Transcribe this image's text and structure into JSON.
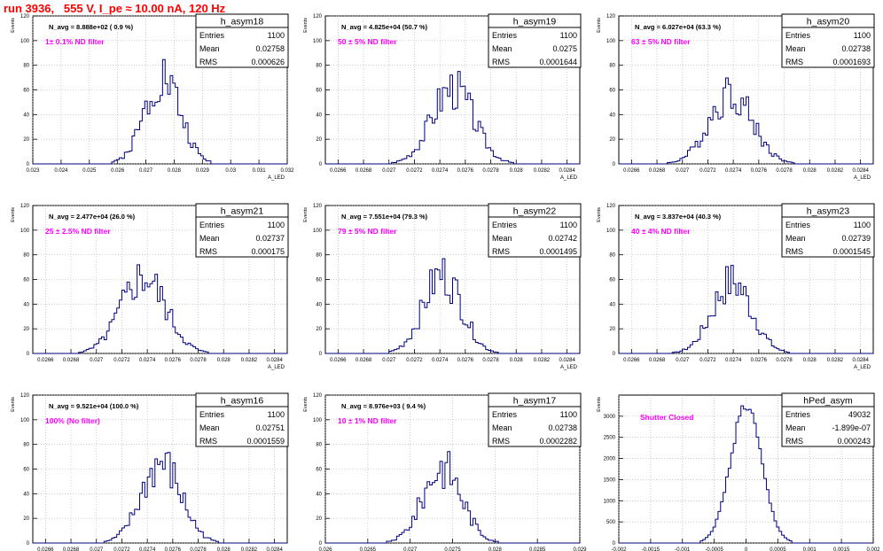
{
  "page_title": "run 3936,   555 V, I_pe ≈ 10.00 nA, 120 Hz",
  "colors": {
    "background": "#ffffff",
    "axis": "#000000",
    "grid": "#b0b0b0",
    "hist": "#000080",
    "title_red": "#ff0000",
    "annotation": "#ff00ff"
  },
  "chart_data": [
    {
      "type": "bar",
      "name": "h_asym18",
      "ylabel": "Events",
      "xlabel": "A_LED",
      "xlim": [
        0.023,
        0.032
      ],
      "ylim": [
        0,
        120
      ],
      "xticks": [
        "0.023",
        "0.024",
        "0.025",
        "0.026",
        "0.027",
        "0.028",
        "0.029",
        "0.03",
        "0.031",
        "0.032"
      ],
      "yticks": [
        "0",
        "20",
        "40",
        "60",
        "80",
        "100",
        "120"
      ],
      "navg": "N_avg = 8.888e+02 ( 0.9 %)",
      "filter": "1± 0.1% ND filter",
      "stats": [
        {
          "label": "Entries",
          "value": "1100"
        },
        {
          "label": "Mean",
          "value": "0.02758"
        },
        {
          "label": "RMS",
          "value": "0.000626"
        }
      ],
      "mean": 0.02758,
      "sigma": 0.000626,
      "peak": 72,
      "seed": 1
    },
    {
      "type": "bar",
      "name": "h_asym19",
      "ylabel": "Events",
      "xlabel": "A_LED",
      "xlim": [
        0.0265,
        0.0285
      ],
      "ylim": [
        0,
        120
      ],
      "xticks": [
        "0.0266",
        "0.0268",
        "0.027",
        "0.0272",
        "0.0274",
        "0.0276",
        "0.0278",
        "0.028",
        "0.0282",
        "0.0284"
      ],
      "yticks": [
        "0",
        "20",
        "40",
        "60",
        "80",
        "100",
        "120"
      ],
      "navg": "N_avg = 4.825e+04 (50.7 %)",
      "filter": "50 ± 5% ND filter",
      "stats": [
        {
          "label": "Entries",
          "value": "1100"
        },
        {
          "label": "Mean",
          "value": "0.0275"
        },
        {
          "label": "RMS",
          "value": "0.0001644"
        }
      ],
      "mean": 0.0275,
      "sigma": 0.0001644,
      "peak": 62,
      "seed": 2
    },
    {
      "type": "bar",
      "name": "h_asym20",
      "ylabel": "Events",
      "xlabel": "A_LED",
      "xlim": [
        0.0265,
        0.0285
      ],
      "ylim": [
        0,
        120
      ],
      "xticks": [
        "0.0266",
        "0.0268",
        "0.027",
        "0.0272",
        "0.0274",
        "0.0276",
        "0.0278",
        "0.028",
        "0.0282",
        "0.0284"
      ],
      "yticks": [
        "0",
        "20",
        "40",
        "60",
        "80",
        "100",
        "120"
      ],
      "navg": "N_avg = 6.027e+04 (63.3 %)",
      "filter": "63 ± 5% ND filter",
      "stats": [
        {
          "label": "Entries",
          "value": "1100"
        },
        {
          "label": "Mean",
          "value": "0.02738"
        },
        {
          "label": "RMS",
          "value": "0.0001693"
        }
      ],
      "mean": 0.02738,
      "sigma": 0.0001693,
      "peak": 58,
      "seed": 3
    },
    {
      "type": "bar",
      "name": "h_asym21",
      "ylabel": "Events",
      "xlabel": "A_LED",
      "xlim": [
        0.0265,
        0.0285
      ],
      "ylim": [
        0,
        120
      ],
      "xticks": [
        "0.0266",
        "0.0268",
        "0.027",
        "0.0272",
        "0.0274",
        "0.0276",
        "0.0278",
        "0.028",
        "0.0282",
        "0.0284"
      ],
      "yticks": [
        "0",
        "20",
        "40",
        "60",
        "80",
        "100",
        "120"
      ],
      "navg": "N_avg = 2.477e+04 (26.0 %)",
      "filter": "25 ± 2.5% ND filter",
      "stats": [
        {
          "label": "Entries",
          "value": "1100"
        },
        {
          "label": "Mean",
          "value": "0.02737"
        },
        {
          "label": "RMS",
          "value": "0.000175"
        }
      ],
      "mean": 0.02737,
      "sigma": 0.000175,
      "peak": 62,
      "seed": 4
    },
    {
      "type": "bar",
      "name": "h_asym22",
      "ylabel": "Events",
      "xlabel": "A_LED",
      "xlim": [
        0.0265,
        0.0285
      ],
      "ylim": [
        0,
        120
      ],
      "xticks": [
        "0.0266",
        "0.0268",
        "0.027",
        "0.0272",
        "0.0274",
        "0.0276",
        "0.0278",
        "0.028",
        "0.0282",
        "0.0284"
      ],
      "yticks": [
        "0",
        "20",
        "40",
        "60",
        "80",
        "100",
        "120"
      ],
      "navg": "N_avg = 7.551e+04 (79.3 %)",
      "filter": "79 ± 5% ND filter",
      "stats": [
        {
          "label": "Entries",
          "value": "1100"
        },
        {
          "label": "Mean",
          "value": "0.02742"
        },
        {
          "label": "RMS",
          "value": "0.0001495"
        }
      ],
      "mean": 0.02742,
      "sigma": 0.0001495,
      "peak": 64,
      "seed": 5
    },
    {
      "type": "bar",
      "name": "h_asym23",
      "ylabel": "Events",
      "xlabel": "A_LED",
      "xlim": [
        0.0265,
        0.0285
      ],
      "ylim": [
        0,
        120
      ],
      "xticks": [
        "0.0266",
        "0.0268",
        "0.027",
        "0.0272",
        "0.0274",
        "0.0276",
        "0.0278",
        "0.028",
        "0.0282",
        "0.0284"
      ],
      "yticks": [
        "0",
        "20",
        "40",
        "60",
        "80",
        "100",
        "120"
      ],
      "navg": "N_avg = 3.837e+04 (40.3 %)",
      "filter": "40 ± 4% ND filter",
      "stats": [
        {
          "label": "Entries",
          "value": "1100"
        },
        {
          "label": "Mean",
          "value": "0.02739"
        },
        {
          "label": "RMS",
          "value": "0.0001545"
        }
      ],
      "mean": 0.02739,
      "sigma": 0.0001545,
      "peak": 58,
      "seed": 6
    },
    {
      "type": "bar",
      "name": "h_asym16",
      "ylabel": "Events",
      "xlabel": "A_LED",
      "xlim": [
        0.0265,
        0.0285
      ],
      "ylim": [
        0,
        120
      ],
      "xticks": [
        "0.0266",
        "0.0268",
        "0.027",
        "0.0272",
        "0.0274",
        "0.0276",
        "0.0278",
        "0.028",
        "0.0282",
        "0.0284"
      ],
      "yticks": [
        "0",
        "20",
        "40",
        "60",
        "80",
        "100",
        "120"
      ],
      "navg": "N_avg = 9.521e+04 (100.0 %)",
      "filter": "100% (No filter)",
      "stats": [
        {
          "label": "Entries",
          "value": "1100"
        },
        {
          "label": "Mean",
          "value": "0.02751"
        },
        {
          "label": "RMS",
          "value": "0.0001559"
        }
      ],
      "mean": 0.02751,
      "sigma": 0.0001559,
      "peak": 64,
      "seed": 7
    },
    {
      "type": "bar",
      "name": "h_asym17",
      "ylabel": "Events",
      "xlabel": "A_LED",
      "xlim": [
        0.026,
        0.029
      ],
      "ylim": [
        0,
        120
      ],
      "xticks": [
        "0.026",
        "0.0265",
        "0.027",
        "0.0275",
        "0.028",
        "0.0285",
        "0.029"
      ],
      "yticks": [
        "0",
        "20",
        "40",
        "60",
        "80",
        "100",
        "120"
      ],
      "navg": "N_avg = 8.976e+03 ( 9.4 %)",
      "filter": "10 ± 1% ND filter",
      "stats": [
        {
          "label": "Entries",
          "value": "1100"
        },
        {
          "label": "Mean",
          "value": "0.02738"
        },
        {
          "label": "RMS",
          "value": "0.0002282"
        }
      ],
      "mean": 0.02738,
      "sigma": 0.0002282,
      "peak": 62,
      "seed": 8
    },
    {
      "type": "bar",
      "name": "hPed_asym",
      "ylabel": "Events",
      "xlabel": "",
      "xlim": [
        -0.002,
        0.002
      ],
      "ylim": [
        0,
        3500
      ],
      "xticks": [
        "-0.002",
        "-0.0015",
        "-0.001",
        "-0.0005",
        "0",
        "0.0005",
        "0.001",
        "0.0015",
        "0.002"
      ],
      "yticks": [
        "0",
        "500",
        "1000",
        "1500",
        "2000",
        "2500",
        "3000"
      ],
      "navg": "",
      "filter": "Shutter Closed",
      "stats": [
        {
          "label": "Entries",
          "value": "49032"
        },
        {
          "label": "Mean",
          "value": "-1.899e-07"
        },
        {
          "label": "RMS",
          "value": "0.000243"
        }
      ],
      "mean": -1.899e-07,
      "sigma": 0.000243,
      "peak": 3250,
      "seed": 0
    }
  ]
}
